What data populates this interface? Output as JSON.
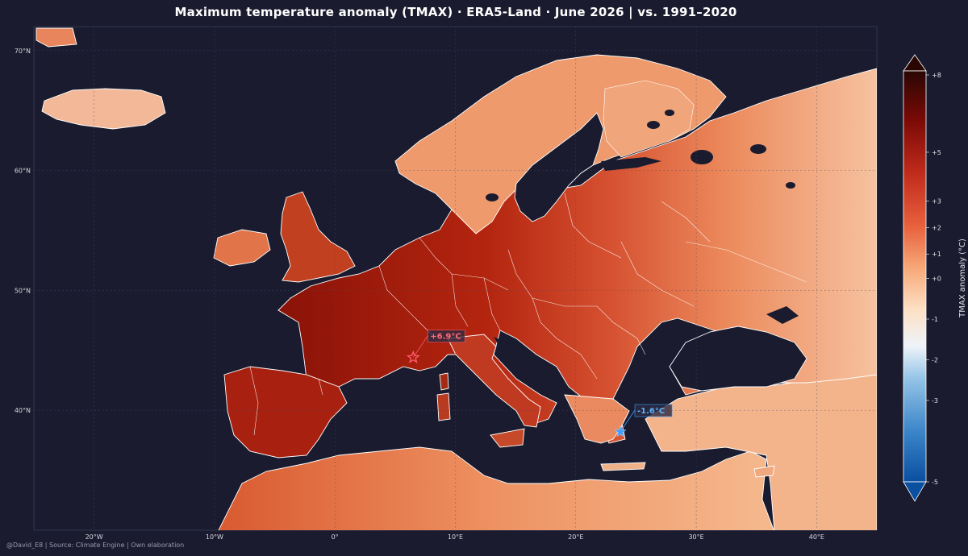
{
  "title": "Maximum temperature anomaly (TMAX) · ERA5-Land  ·  June 2026 | vs. 1991–2020",
  "footer": "@David_E8 | Source: Climate Engine | Own elaboration",
  "colors": {
    "background": "#1a1b2e",
    "sea": "#1a1b2e",
    "border": "#ffffff",
    "hot_marker": "#ff5a6a",
    "cold_marker": "#3fa0ff"
  },
  "map": {
    "lat_labels": [
      {
        "lat": 70,
        "text": "70°N"
      },
      {
        "lat": 60,
        "text": "60°N"
      },
      {
        "lat": 50,
        "text": "50°N"
      },
      {
        "lat": 40,
        "text": "40°N"
      }
    ],
    "lon_labels": [
      {
        "lon": -20,
        "text": "20°W"
      },
      {
        "lon": -10,
        "text": "10°W"
      },
      {
        "lon": 0,
        "text": "0°"
      },
      {
        "lon": 10,
        "text": "10°E"
      },
      {
        "lon": 20,
        "text": "20°E"
      },
      {
        "lon": 30,
        "text": "30°E"
      },
      {
        "lon": 40,
        "text": "40°E"
      }
    ],
    "extent": {
      "lon_min": -25,
      "lon_max": 45,
      "lat_min": 30,
      "lat_max": 72
    }
  },
  "callouts": {
    "hot": {
      "text": "+6.9°C",
      "lon": 6.5,
      "lat": 44.4
    },
    "cold": {
      "text": "-1.6°C",
      "lon": 23.7,
      "lat": 38.2
    }
  },
  "colorbar": {
    "label": "TMAX anomaly (°C)",
    "ticks": [
      "+8",
      "+5",
      "+3",
      "+2",
      "+1",
      "+0",
      "-1",
      "-2",
      "-3",
      "-5"
    ],
    "min": -5,
    "max": 8,
    "stops": [
      "#0a4fa0",
      "#3a84c8",
      "#93c3e6",
      "#eef3fa",
      "#fde0c4",
      "#f7a878",
      "#e8623e",
      "#c12b1c",
      "#7a0a06",
      "#2a0603"
    ]
  }
}
